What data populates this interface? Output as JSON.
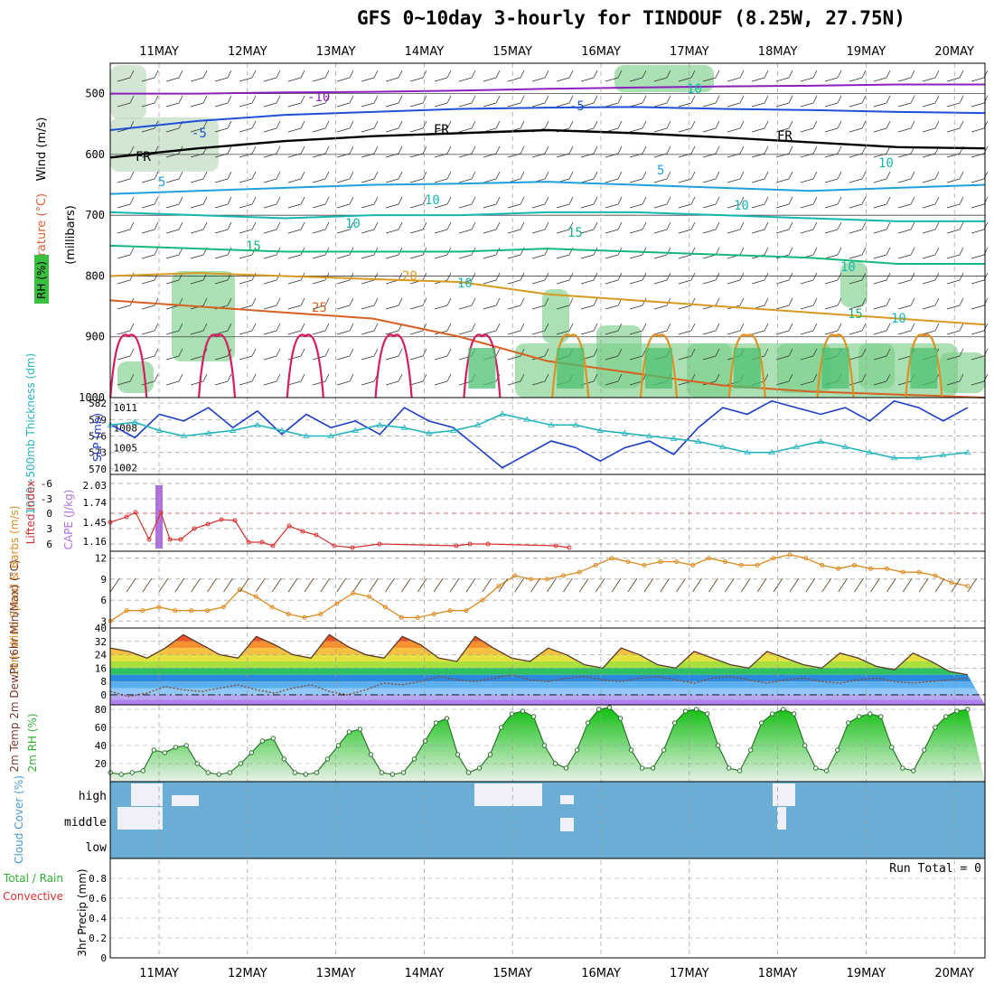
{
  "title": "GFS 0~10day 3-hourly for TINDOUF (8.25W, 27.75N)",
  "dates": [
    "11MAY",
    "12MAY",
    "13MAY",
    "14MAY",
    "15MAY",
    "16MAY",
    "17MAY",
    "18MAY",
    "19MAY",
    "20MAY"
  ],
  "colors": {
    "grid": "#999999",
    "rh_green": "#2fb84a",
    "cloud_blue": "#6aaed6",
    "slp": "#1c3cc8",
    "thick": "#22b5c0",
    "lifted": "#d83030",
    "cape": "#b070e0",
    "wind10": "#e08a20",
    "temp": "#5a3a28"
  },
  "chart_data": [
    {
      "type": "contour",
      "panel": "upper-air",
      "ylabel_parts": {
        "rh": "RH (%)",
        "temp": "Temperature (°C)",
        "wind": "Wind (m/s)",
        "units": "(millibars)"
      },
      "yticks": [
        500,
        600,
        700,
        800,
        900,
        1000
      ],
      "ylim": [
        1000,
        450
      ],
      "contour_labels": [
        "-10",
        "10",
        "-5",
        "-5",
        "FR",
        "FR",
        "FR",
        "5",
        "5",
        "10",
        "10",
        "10",
        "15",
        "15",
        "15",
        "20",
        "25",
        "10",
        "10",
        "10",
        "10"
      ],
      "isotherms": [
        {
          "level": "-10",
          "color": "#8b1fc0",
          "p": [
            500,
            500,
            498,
            497,
            495,
            492,
            490,
            488,
            487,
            485,
            485
          ]
        },
        {
          "level": "-5",
          "color": "#1f4fd8",
          "p": [
            560,
            545,
            535,
            530,
            525,
            523,
            522,
            525,
            527,
            530,
            532
          ]
        },
        {
          "level": "FR",
          "color": "#000000",
          "p": [
            605,
            590,
            578,
            570,
            565,
            560,
            565,
            572,
            580,
            588,
            590
          ]
        },
        {
          "level": "5",
          "color": "#1f9fe0",
          "p": [
            665,
            660,
            655,
            650,
            648,
            645,
            650,
            655,
            660,
            655,
            650
          ]
        },
        {
          "level": "10",
          "color": "#14b8b0",
          "p": [
            695,
            700,
            705,
            700,
            700,
            695,
            695,
            700,
            705,
            710,
            710
          ]
        },
        {
          "level": "15",
          "color": "#14b878",
          "p": [
            750,
            755,
            760,
            760,
            760,
            755,
            760,
            765,
            770,
            780,
            780
          ]
        },
        {
          "level": "20",
          "color": "#d89a20",
          "p": [
            800,
            795,
            800,
            805,
            810,
            830,
            840,
            850,
            860,
            870,
            880
          ]
        },
        {
          "level": "25",
          "color": "#d86020",
          "p": [
            840,
            850,
            860,
            870,
            900,
            940,
            960,
            980,
            990,
            995,
            1000
          ]
        }
      ]
    },
    {
      "type": "line",
      "panel": "slp-thickness",
      "ylabel": "SLP (mb)",
      "ylabel2": "1000~500mb Thickness (dm)",
      "yticks_left": [
        570,
        573,
        576,
        579,
        582
      ],
      "yticks_right": [
        1002,
        1005,
        1008,
        1011
      ],
      "series": [
        {
          "key": "slp",
          "values": [
            1008.5,
            1006.5,
            1010,
            1009,
            1011,
            1008,
            1010.5,
            1007,
            1010,
            1008,
            1009,
            1007,
            1011,
            1009,
            1008,
            1005,
            1002,
            1004,
            1006,
            1005,
            1003,
            1005,
            1006,
            1004,
            1008,
            1011,
            1010,
            1012,
            1011,
            1010,
            1011,
            1009,
            1012,
            1011,
            1009,
            1011
          ]
        },
        {
          "key": "thick",
          "values": [
            578,
            578.5,
            577,
            576,
            576.5,
            577,
            578,
            577,
            576,
            576,
            577,
            578,
            577.5,
            576.5,
            577,
            578,
            580,
            579,
            578,
            578,
            577,
            576.5,
            576,
            575.5,
            575,
            574,
            573,
            573,
            574,
            575,
            574,
            573,
            572,
            572,
            572.5,
            573
          ]
        }
      ]
    },
    {
      "type": "line",
      "panel": "cape-li",
      "ylabel": "Lifted Index",
      "ylabel2": "CAPE (J/kg)",
      "yticks_left": [
        "-6",
        "-3",
        "0",
        "3",
        "6"
      ],
      "yticks_right": [
        "2.03",
        "1.74",
        "1.45",
        "1.16"
      ],
      "cape_bar_day": 0.0
    },
    {
      "type": "line",
      "panel": "wind10",
      "ylabel": "10m Wind Speed & Barbs (m/s)",
      "yticks": [
        3,
        6,
        9,
        12
      ],
      "ylim": [
        2,
        13
      ],
      "values": [
        3,
        4.5,
        4.5,
        5,
        4.5,
        4.5,
        4.5,
        5,
        7.5,
        6.5,
        5,
        4,
        3.5,
        4,
        5.5,
        7,
        6.5,
        5,
        3.5,
        3.5,
        4,
        4.5,
        4.5,
        6,
        8,
        9.5,
        9,
        9,
        9.5,
        10,
        11,
        12,
        11.5,
        11,
        11.5,
        11.5,
        11,
        12,
        11.5,
        11,
        11,
        12,
        12.5,
        12,
        11,
        10.5,
        11,
        10.5,
        10.5,
        10,
        10,
        9.5,
        8.5,
        8
      ]
    },
    {
      "type": "area",
      "panel": "temperature",
      "ylabel": "2m Temp 2m DewPt (6hr Min/Max) (°C)",
      "yticks": [
        0,
        8,
        16,
        24,
        32,
        40
      ],
      "ylim": [
        -6,
        40
      ],
      "temp": [
        28,
        26,
        22,
        28,
        36,
        30,
        24,
        22,
        35,
        30,
        24,
        22,
        36,
        29,
        24,
        22,
        35,
        30,
        22,
        20,
        35,
        28,
        22,
        20,
        28,
        24,
        18,
        16,
        28,
        24,
        18,
        16,
        26,
        22,
        18,
        16,
        26,
        22,
        18,
        16,
        25,
        22,
        17,
        15,
        25,
        20,
        14,
        12
      ],
      "dew": [
        2,
        -1,
        1,
        5,
        3,
        2,
        4,
        6,
        3,
        1,
        4,
        6,
        2,
        0,
        3,
        7,
        6,
        8,
        11,
        9,
        8,
        10,
        12,
        9,
        8,
        10,
        11,
        9,
        8,
        10,
        11,
        9,
        7,
        10,
        11,
        9,
        7,
        9,
        10,
        8,
        7,
        9,
        10,
        8,
        7,
        8,
        9,
        10
      ]
    },
    {
      "type": "area",
      "panel": "rh",
      "ylabel": "2m RH (%)",
      "yticks": [
        20,
        40,
        60,
        80
      ],
      "ylim": [
        0,
        85
      ],
      "values": [
        10,
        8,
        10,
        12,
        35,
        32,
        38,
        40,
        20,
        10,
        8,
        10,
        20,
        32,
        45,
        48,
        25,
        10,
        8,
        10,
        25,
        40,
        55,
        58,
        30,
        10,
        8,
        10,
        25,
        45,
        65,
        70,
        30,
        10,
        15,
        30,
        60,
        75,
        78,
        72,
        40,
        20,
        15,
        35,
        65,
        80,
        82,
        70,
        35,
        15,
        15,
        35,
        65,
        78,
        80,
        75,
        40,
        15,
        12,
        35,
        65,
        75,
        80,
        75,
        40,
        15,
        12,
        35,
        65,
        72,
        75,
        72,
        38,
        15,
        12,
        35,
        60,
        72,
        78,
        80
      ]
    },
    {
      "type": "heatmap",
      "panel": "cloud",
      "ylabel": "Cloud Cover (%)",
      "rows": [
        "high",
        "middle",
        "low"
      ]
    },
    {
      "type": "bar",
      "panel": "precip",
      "ylabel": "3hr Precip (mm)",
      "ylabel2": "Total / Rain",
      "ylabel3": "Convective",
      "yticks": [
        "0",
        "0.2",
        "0.4",
        "0.6",
        "0.8"
      ],
      "ylim": [
        0,
        1
      ],
      "annotation": "Run Total = 0"
    }
  ]
}
